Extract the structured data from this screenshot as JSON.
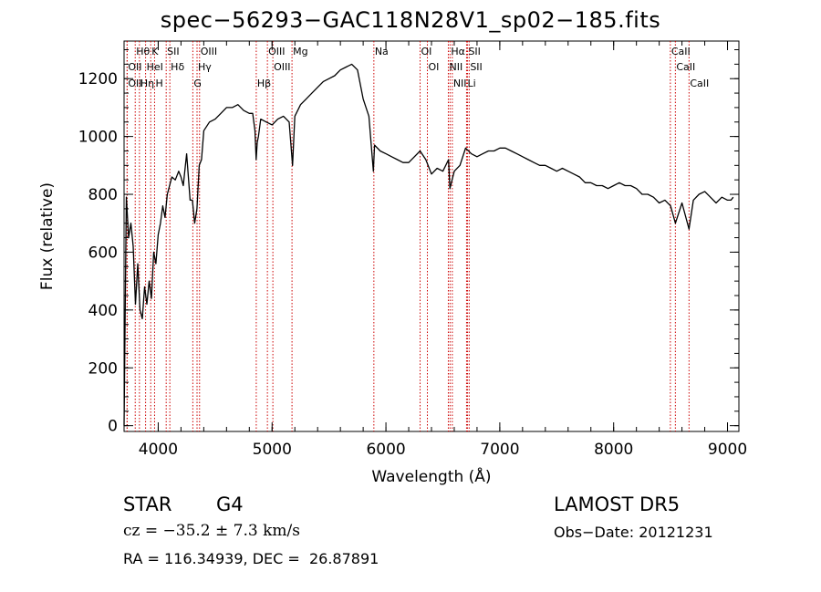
{
  "title": "spec−56293−GAC118N28V1_sp02−185.fits",
  "footer": {
    "class_label": "STAR",
    "subclass": "G4",
    "redshift": "cz = −35.2 ± 7.3 km/s",
    "coords": "RA = 116.34939, DEC =  26.87891",
    "survey": "LAMOST DR5",
    "obs_date": "Obs−Date: 20121231"
  },
  "chart_data": {
    "type": "line",
    "title": "spec−56293−GAC118N28V1_sp02−185.fits",
    "xlabel": "Wavelength (Å)",
    "ylabel": "Flux (relative)",
    "xlim": [
      3700,
      9100
    ],
    "ylim": [
      -20,
      1330
    ],
    "x_ticks": [
      4000,
      5000,
      6000,
      7000,
      8000,
      9000
    ],
    "y_ticks": [
      0,
      200,
      400,
      600,
      800,
      1000,
      1200
    ],
    "grid": false,
    "series": [
      {
        "x": [
          3700,
          3720,
          3740,
          3760,
          3780,
          3800,
          3820,
          3840,
          3860,
          3880,
          3900,
          3920,
          3940,
          3960,
          3980,
          4000,
          4020,
          4040,
          4060,
          4080,
          4100,
          4120,
          4150,
          4180,
          4200,
          4220,
          4250,
          4280,
          4300,
          4320,
          4340,
          4360,
          4380,
          4400,
          4450,
          4500,
          4550,
          4600,
          4650,
          4700,
          4750,
          4800,
          4830,
          4850,
          4860,
          4870,
          4880,
          4900,
          4950,
          5000,
          5050,
          5100,
          5150,
          5180,
          5200,
          5250,
          5300,
          5350,
          5400,
          5450,
          5500,
          5550,
          5600,
          5650,
          5700,
          5750,
          5800,
          5850,
          5890,
          5900,
          5950,
          6000,
          6050,
          6100,
          6150,
          6200,
          6250,
          6300,
          6350,
          6400,
          6450,
          6500,
          6550,
          6562,
          6600,
          6650,
          6700,
          6750,
          6800,
          6850,
          6900,
          6950,
          7000,
          7050,
          7100,
          7150,
          7200,
          7250,
          7300,
          7350,
          7400,
          7450,
          7500,
          7550,
          7600,
          7650,
          7700,
          7750,
          7800,
          7850,
          7900,
          7950,
          8000,
          8050,
          8100,
          8150,
          8200,
          8250,
          8300,
          8350,
          8400,
          8450,
          8500,
          8542,
          8600,
          8662,
          8700,
          8750,
          8800,
          8850,
          8900,
          8950,
          9000,
          9030,
          9050
        ],
        "y": [
          0,
          790,
          650,
          700,
          620,
          420,
          560,
          400,
          370,
          480,
          420,
          500,
          440,
          600,
          560,
          660,
          700,
          760,
          720,
          800,
          830,
          860,
          850,
          880,
          860,
          830,
          940,
          780,
          780,
          700,
          750,
          900,
          920,
          1020,
          1050,
          1060,
          1080,
          1100,
          1100,
          1110,
          1090,
          1080,
          1080,
          1020,
          920,
          980,
          1000,
          1060,
          1050,
          1040,
          1060,
          1070,
          1050,
          900,
          1070,
          1110,
          1130,
          1150,
          1170,
          1190,
          1200,
          1210,
          1230,
          1240,
          1250,
          1230,
          1130,
          1070,
          880,
          970,
          950,
          940,
          930,
          920,
          910,
          910,
          930,
          950,
          920,
          870,
          890,
          880,
          920,
          820,
          880,
          900,
          960,
          940,
          930,
          940,
          950,
          950,
          960,
          960,
          950,
          940,
          930,
          920,
          910,
          900,
          900,
          890,
          880,
          890,
          880,
          870,
          860,
          840,
          840,
          830,
          830,
          820,
          830,
          840,
          830,
          830,
          820,
          800,
          800,
          790,
          770,
          780,
          760,
          700,
          770,
          680,
          780,
          800,
          810,
          790,
          770,
          790,
          780,
          780,
          790
        ]
      }
    ],
    "lines": [
      {
        "name": "Hθ",
        "x": 3798
      },
      {
        "name": "OII",
        "x": 3727
      },
      {
        "name": "Hη",
        "x": 3835
      },
      {
        "name": "OII",
        "x": 3727
      },
      {
        "name": "HeI",
        "x": 3889
      },
      {
        "name": "K",
        "x": 3934
      },
      {
        "name": "H",
        "x": 3968
      },
      {
        "name": "SII",
        "x": 4070
      },
      {
        "name": "Hδ",
        "x": 4102
      },
      {
        "name": "OIII",
        "x": 4363
      },
      {
        "name": "Hγ",
        "x": 4341
      },
      {
        "name": "G",
        "x": 4304
      },
      {
        "name": "OIII",
        "x": 4959
      },
      {
        "name": "OIII",
        "x": 5007
      },
      {
        "name": "Hβ",
        "x": 4861
      },
      {
        "name": "Mg",
        "x": 5175
      },
      {
        "name": "Na",
        "x": 5894
      },
      {
        "name": "OI",
        "x": 6300
      },
      {
        "name": "OI",
        "x": 6364
      },
      {
        "name": "Hα",
        "x": 6563
      },
      {
        "name": "NII",
        "x": 6548
      },
      {
        "name": "NII",
        "x": 6583
      },
      {
        "name": "SII",
        "x": 6716
      },
      {
        "name": "SII",
        "x": 6731
      },
      {
        "name": "Li",
        "x": 6708
      },
      {
        "name": "CaII",
        "x": 8498
      },
      {
        "name": "CaII",
        "x": 8542
      },
      {
        "name": "CaII",
        "x": 8662
      }
    ]
  }
}
